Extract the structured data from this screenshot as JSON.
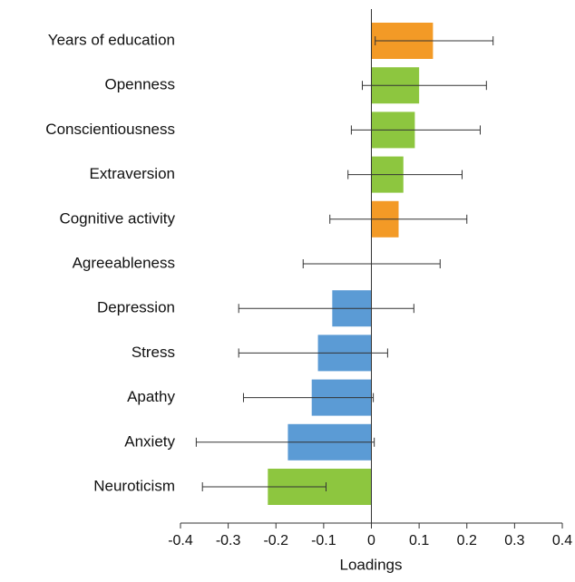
{
  "chart_data": {
    "type": "bar",
    "orientation": "horizontal",
    "categories": [
      "Years of education",
      "Openness",
      "Conscientiousness",
      "Extraversion",
      "Cognitive activity",
      "Agreeableness",
      "Depression",
      "Stress",
      "Apathy",
      "Anxiety",
      "Neuroticism"
    ],
    "values": [
      0.129,
      0.1,
      0.091,
      0.067,
      0.057,
      0.0,
      -0.082,
      -0.112,
      -0.125,
      -0.175,
      -0.217
    ],
    "ci_low": [
      0.008,
      -0.019,
      -0.042,
      -0.049,
      -0.087,
      -0.143,
      -0.278,
      -0.278,
      -0.268,
      -0.367,
      -0.354
    ],
    "ci_high": [
      0.255,
      0.241,
      0.228,
      0.19,
      0.2,
      0.144,
      0.089,
      0.034,
      0.004,
      0.006,
      -0.095
    ],
    "colors": [
      "#f39a26",
      "#8dc63f",
      "#8dc63f",
      "#8dc63f",
      "#f39a26",
      "#8dc63f",
      "#5b9bd5",
      "#5b9bd5",
      "#5b9bd5",
      "#5b9bd5",
      "#8dc63f"
    ],
    "xlabel": "Loadings",
    "xlim": [
      -0.4,
      0.4
    ],
    "xticks": [
      -0.4,
      -0.3,
      -0.2,
      -0.1,
      0,
      0.1,
      0.2,
      0.3,
      0.4
    ]
  }
}
